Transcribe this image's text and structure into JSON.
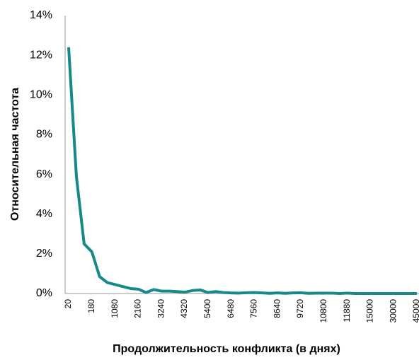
{
  "chart_data": {
    "type": "line",
    "x_label": "Продолжительность конфликта (в днях)",
    "y_label": "Относительная частота",
    "categories": [
      "20",
      null,
      null,
      "180",
      null,
      null,
      "1080",
      null,
      null,
      "2160",
      null,
      null,
      "3240",
      null,
      null,
      "4320",
      null,
      null,
      "5400",
      null,
      null,
      "6480",
      null,
      null,
      "7560",
      null,
      null,
      "8640",
      null,
      null,
      "9720",
      null,
      null,
      "10800",
      null,
      null,
      "11880",
      null,
      null,
      "15000",
      null,
      null,
      "30000",
      null,
      null,
      "45000"
    ],
    "series": [
      {
        "name": "Относительная частота",
        "color": "#16898b",
        "values": [
          12.4,
          5.9,
          2.5,
          2.1,
          0.85,
          0.55,
          0.45,
          0.35,
          0.25,
          0.22,
          0.05,
          0.2,
          0.12,
          0.12,
          0.1,
          0.07,
          0.15,
          0.18,
          0.05,
          0.1,
          0.05,
          0.03,
          0.02,
          0.04,
          0.05,
          0.03,
          0.01,
          0.03,
          0.01,
          0.03,
          0.04,
          0.01,
          0.02,
          0.02,
          0.02,
          0,
          0.02,
          0,
          0,
          0,
          0,
          0,
          0,
          0,
          0,
          0
        ]
      }
    ],
    "ylim": [
      0,
      14
    ],
    "yticks": [
      {
        "value": 0,
        "label": "0%"
      },
      {
        "value": 2,
        "label": "2%"
      },
      {
        "value": 4,
        "label": "4%"
      },
      {
        "value": 6,
        "label": "6%"
      },
      {
        "value": 8,
        "label": "8%"
      },
      {
        "value": 10,
        "label": "10%"
      },
      {
        "value": 12,
        "label": "12%"
      },
      {
        "value": 14,
        "label": "14%"
      }
    ],
    "grid": false,
    "legend": false
  }
}
